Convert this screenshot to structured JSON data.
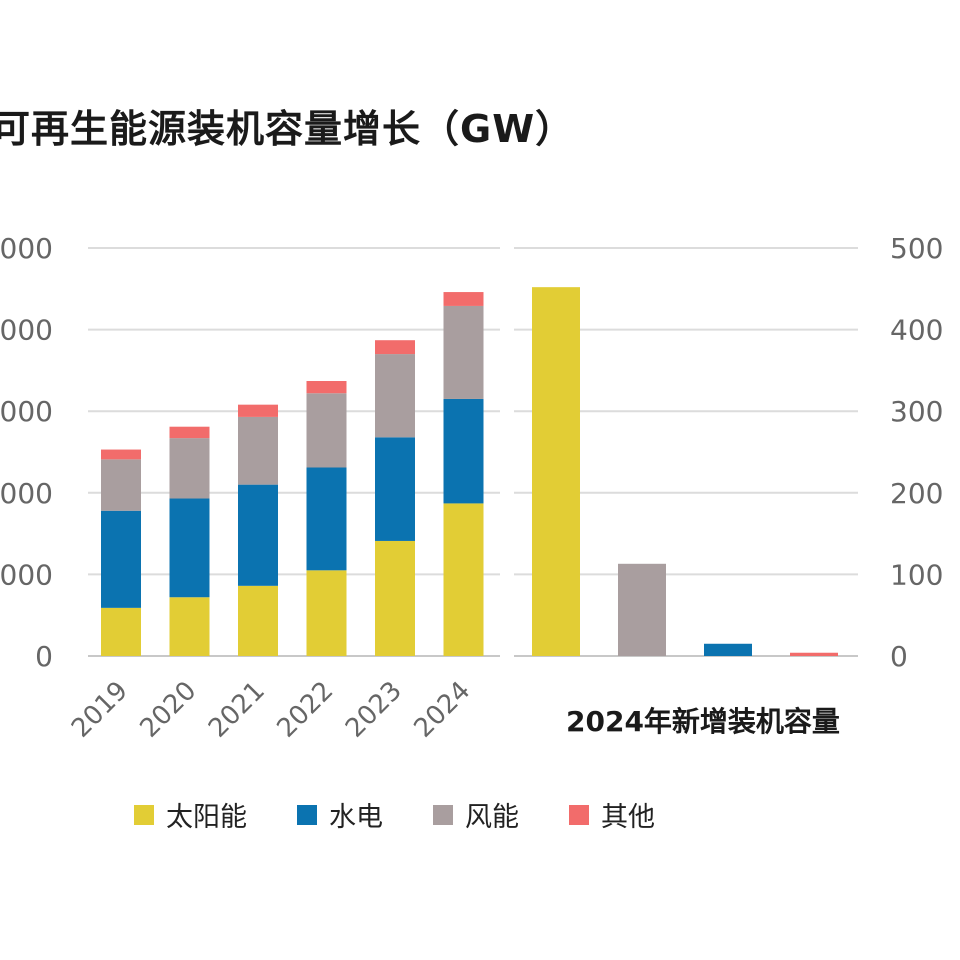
{
  "chart_data": {
    "type": "bar",
    "title": "可再生能源装机容量增长（GW）",
    "left_panel": {
      "stacked": true,
      "categories": [
        "2019",
        "2020",
        "2021",
        "2022",
        "2023",
        "2024"
      ],
      "yticks_display": [
        "000",
        "000",
        "000",
        "000",
        "000",
        "0"
      ],
      "ylim": [
        0,
        5000
      ],
      "series": [
        {
          "name": "太阳能",
          "color": "#E2CD35",
          "values": [
            590,
            720,
            860,
            1050,
            1410,
            1870
          ]
        },
        {
          "name": "水电",
          "color": "#0B73B0",
          "values": [
            1190,
            1210,
            1240,
            1260,
            1270,
            1280
          ]
        },
        {
          "name": "风能",
          "color": "#A99E9F",
          "values": [
            630,
            740,
            830,
            910,
            1020,
            1140
          ]
        },
        {
          "name": "其他",
          "color": "#F26C6B",
          "values": [
            120,
            140,
            150,
            150,
            170,
            170
          ]
        }
      ]
    },
    "right_panel": {
      "xlabel": "2024年新增装机容量",
      "ylim": [
        0,
        500
      ],
      "yticks": [
        "500",
        "400",
        "300",
        "200",
        "100",
        "0"
      ],
      "bars": [
        {
          "name": "太阳能",
          "color": "#E2CD35",
          "value": 452
        },
        {
          "name": "风能",
          "color": "#A99E9F",
          "value": 113
        },
        {
          "name": "水电",
          "color": "#0B73B0",
          "value": 15
        },
        {
          "name": "其他",
          "color": "#F26C6B",
          "value": 4
        }
      ]
    },
    "legend": [
      {
        "name": "太阳能",
        "color": "#E2CD35"
      },
      {
        "name": "水电",
        "color": "#0B73B0"
      },
      {
        "name": "风能",
        "color": "#A99E9F"
      },
      {
        "name": "其他",
        "color": "#F26C6B"
      }
    ],
    "grid": true,
    "legend_position": "bottom"
  }
}
